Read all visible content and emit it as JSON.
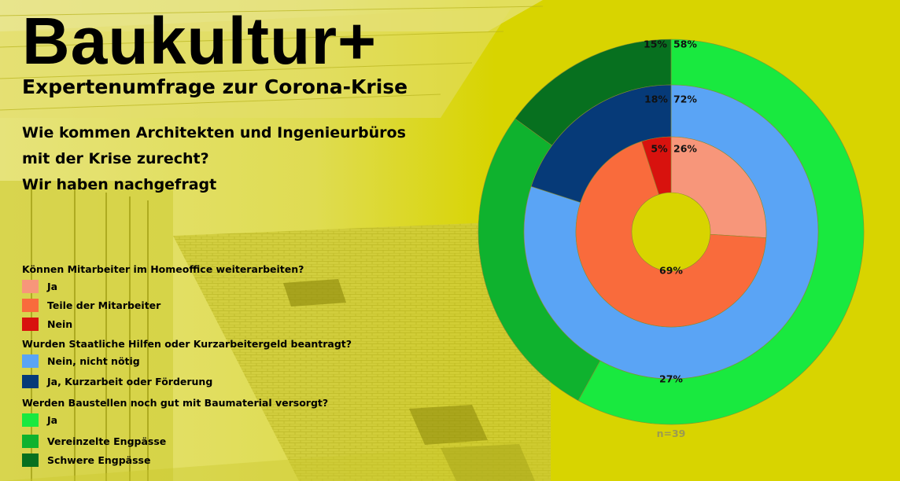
{
  "header": {
    "title": "Baukultur+",
    "subtitle": "Expertenumfrage zur Corona-Krise",
    "question_lines": [
      "Wie kommen Architekten und Ingenieurbüros",
      "mit der Krise zurecht?",
      "Wir haben nachgefragt"
    ]
  },
  "legend": {
    "groups": [
      {
        "title": "Können Mitarbeiter im Homeoffice weiterarbeiten?",
        "items": [
          {
            "label": "Ja",
            "color": "#f7967a"
          },
          {
            "label": "Teile der Mitarbeiter",
            "color": "#f96b3c"
          },
          {
            "label": "Nein",
            "color": "#d8120e"
          }
        ]
      },
      {
        "title": "Wurden Staatliche Hilfen oder Kurzarbeitergeld beantragt?",
        "items": [
          {
            "label": "Nein, nicht nötig",
            "color": "#5aa4f5"
          },
          {
            "label": "Ja, Kurzarbeit oder Förderung",
            "color": "#063a78"
          }
        ]
      },
      {
        "title": "Werden Baustellen noch gut mit Baumaterial versorgt?",
        "items": [
          {
            "label": "Ja",
            "color": "#19e93f"
          },
          {
            "label": "Vereinzelte Engpässe",
            "color": "#0fb22e"
          },
          {
            "label": "Schwere Engpässe",
            "color": "#07701f"
          }
        ]
      }
    ]
  },
  "chart_data": {
    "type": "donut",
    "title": "",
    "sample_note": "n=39",
    "rings": [
      {
        "name": "Können Mitarbeiter im Homeoffice weiterarbeiten?",
        "categories": [
          "Ja",
          "Teile der Mitarbeiter",
          "Nein"
        ],
        "values": [
          26,
          69,
          5
        ],
        "labels": [
          "26%",
          "69%",
          "5%"
        ],
        "colors": [
          "#f7967a",
          "#f96b3c",
          "#d8120e"
        ]
      },
      {
        "name": "Wurden Staatliche Hilfen oder Kurzarbeitergeld beantragt?",
        "categories": [
          "Nein, nicht nötig",
          "Ja, Kurzarbeit oder Förderung"
        ],
        "values": [
          72,
          18
        ],
        "labels": [
          "72%",
          "18%"
        ],
        "colors": [
          "#5aa4f5",
          "#063a78"
        ]
      },
      {
        "name": "Werden Baustellen noch gut mit Baumaterial versorgt?",
        "categories": [
          "Ja",
          "Vereinzelte Engpässe",
          "Schwere Engpässe"
        ],
        "values": [
          58,
          27,
          15
        ],
        "labels": [
          "58%",
          "27%",
          "15%"
        ],
        "colors": [
          "#19e93f",
          "#0fb22e",
          "#07701f"
        ]
      }
    ]
  }
}
